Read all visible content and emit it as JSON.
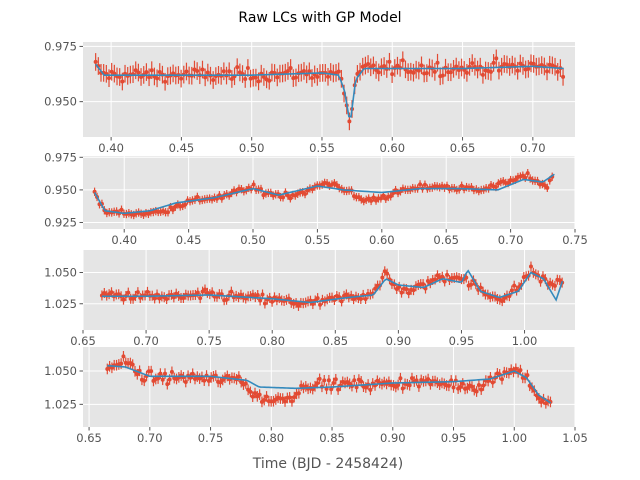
{
  "figure": {
    "title": "Raw LCs with GP Model",
    "xlabel": "Time (BJD - 2458424)",
    "background": "#ffffff",
    "panel_background": "#e5e5e5",
    "grid_color": "#ffffff",
    "data_color": "#e24a33",
    "model_color": "#348abd",
    "tick_text_color": "#555555"
  },
  "chart_data": [
    {
      "type": "line",
      "title": "",
      "xlabel": "",
      "ylabel": "",
      "xlim": [
        0.38,
        0.73
      ],
      "ylim": [
        0.934,
        0.977
      ],
      "xticks": [
        0.4,
        0.45,
        0.5,
        0.55,
        0.6,
        0.65,
        0.7
      ],
      "xtick_labels": [
        "0.40",
        "0.45",
        "0.50",
        "0.55",
        "0.60",
        "0.65",
        "0.70"
      ],
      "yticks": [
        0.95,
        0.975
      ],
      "ytick_labels": [
        "0.950",
        "0.975"
      ],
      "grid": true,
      "series": [
        {
          "kind": "data",
          "noise": 0.0035,
          "errorbar": 0.004,
          "spacing": 0.0019,
          "knots": [
            [
              0.389,
              0.966
            ],
            [
              0.395,
              0.962
            ],
            [
              0.45,
              0.962
            ],
            [
              0.5,
              0.962
            ],
            [
              0.55,
              0.963
            ],
            [
              0.562,
              0.962
            ],
            [
              0.566,
              0.955
            ],
            [
              0.57,
              0.939
            ],
            [
              0.574,
              0.96
            ],
            [
              0.58,
              0.965
            ],
            [
              0.65,
              0.965
            ],
            [
              0.7,
              0.966
            ],
            [
              0.722,
              0.965
            ]
          ]
        },
        {
          "kind": "model",
          "knots": [
            [
              0.389,
              0.967
            ],
            [
              0.395,
              0.962
            ],
            [
              0.45,
              0.962
            ],
            [
              0.5,
              0.962
            ],
            [
              0.55,
              0.963
            ],
            [
              0.562,
              0.962
            ],
            [
              0.566,
              0.955
            ],
            [
              0.57,
              0.94
            ],
            [
              0.574,
              0.96
            ],
            [
              0.58,
              0.965
            ],
            [
              0.65,
              0.965
            ],
            [
              0.7,
              0.966
            ],
            [
              0.722,
              0.965
            ]
          ]
        }
      ]
    },
    {
      "type": "line",
      "title": "",
      "xlabel": "",
      "ylabel": "",
      "xlim": [
        0.368,
        0.75
      ],
      "ylim": [
        0.92,
        0.976
      ],
      "xticks": [
        0.4,
        0.45,
        0.5,
        0.55,
        0.6,
        0.65,
        0.7,
        0.75
      ],
      "xtick_labels": [
        "0.40",
        "0.45",
        "0.50",
        "0.55",
        "0.60",
        "0.65",
        "0.70",
        "0.75"
      ],
      "yticks": [
        0.925,
        0.95,
        0.975
      ],
      "ytick_labels": [
        "0.925",
        "0.950",
        "0.975"
      ],
      "grid": true,
      "series": [
        {
          "kind": "data",
          "noise": 0.0028,
          "errorbar": 0.0032,
          "spacing": 0.0019,
          "knots": [
            [
              0.377,
              0.948
            ],
            [
              0.382,
              0.938
            ],
            [
              0.385,
              0.933
            ],
            [
              0.41,
              0.932
            ],
            [
              0.43,
              0.933
            ],
            [
              0.44,
              0.938
            ],
            [
              0.46,
              0.943
            ],
            [
              0.48,
              0.945
            ],
            [
              0.49,
              0.95
            ],
            [
              0.5,
              0.951
            ],
            [
              0.51,
              0.948
            ],
            [
              0.52,
              0.946
            ],
            [
              0.53,
              0.946
            ],
            [
              0.545,
              0.95
            ],
            [
              0.555,
              0.955
            ],
            [
              0.565,
              0.954
            ],
            [
              0.575,
              0.948
            ],
            [
              0.585,
              0.942
            ],
            [
              0.595,
              0.943
            ],
            [
              0.605,
              0.946
            ],
            [
              0.62,
              0.95
            ],
            [
              0.64,
              0.953
            ],
            [
              0.66,
              0.951
            ],
            [
              0.675,
              0.951
            ],
            [
              0.69,
              0.953
            ],
            [
              0.7,
              0.958
            ],
            [
              0.715,
              0.96
            ],
            [
              0.728,
              0.952
            ],
            [
              0.734,
              0.962
            ]
          ]
        },
        {
          "kind": "model",
          "knots": [
            [
              0.377,
              0.948
            ],
            [
              0.385,
              0.934
            ],
            [
              0.4,
              0.932
            ],
            [
              0.42,
              0.934
            ],
            [
              0.44,
              0.94
            ],
            [
              0.47,
              0.944
            ],
            [
              0.5,
              0.951
            ],
            [
              0.52,
              0.946
            ],
            [
              0.55,
              0.953
            ],
            [
              0.57,
              0.95
            ],
            [
              0.6,
              0.948
            ],
            [
              0.63,
              0.951
            ],
            [
              0.66,
              0.951
            ],
            [
              0.69,
              0.95
            ],
            [
              0.71,
              0.958
            ],
            [
              0.725,
              0.956
            ],
            [
              0.734,
              0.962
            ]
          ]
        }
      ]
    },
    {
      "type": "line",
      "title": "",
      "xlabel": "",
      "ylabel": "",
      "xlim": [
        0.65,
        1.04
      ],
      "ylim": [
        1.004,
        1.068
      ],
      "xticks": [
        0.65,
        0.7,
        0.75,
        0.8,
        0.85,
        0.9,
        0.95,
        1.0
      ],
      "xtick_labels": [
        "0.65",
        "0.70",
        "0.75",
        "0.80",
        "0.85",
        "0.90",
        "0.95",
        "1.00"
      ],
      "yticks": [
        1.025,
        1.05
      ],
      "ytick_labels": [
        "1.025",
        "1.050"
      ],
      "grid": true,
      "series": [
        {
          "kind": "data",
          "noise": 0.0045,
          "errorbar": 0.004,
          "spacing": 0.0019,
          "knots": [
            [
              0.665,
              1.032
            ],
            [
              0.7,
              1.031
            ],
            [
              0.72,
              1.03
            ],
            [
              0.75,
              1.032
            ],
            [
              0.78,
              1.03
            ],
            [
              0.8,
              1.028
            ],
            [
              0.83,
              1.025
            ],
            [
              0.86,
              1.03
            ],
            [
              0.875,
              1.032
            ],
            [
              0.885,
              1.04
            ],
            [
              0.89,
              1.05
            ],
            [
              0.895,
              1.04
            ],
            [
              0.91,
              1.035
            ],
            [
              0.93,
              1.045
            ],
            [
              0.945,
              1.048
            ],
            [
              0.96,
              1.04
            ],
            [
              0.97,
              1.032
            ],
            [
              0.985,
              1.03
            ],
            [
              0.995,
              1.038
            ],
            [
              1.005,
              1.052
            ],
            [
              1.02,
              1.04
            ],
            [
              1.025,
              1.042
            ],
            [
              1.03,
              1.043
            ]
          ]
        },
        {
          "kind": "model",
          "knots": [
            [
              0.665,
              1.031
            ],
            [
              0.7,
              1.031
            ],
            [
              0.75,
              1.032
            ],
            [
              0.8,
              1.029
            ],
            [
              0.83,
              1.026
            ],
            [
              0.86,
              1.03
            ],
            [
              0.88,
              1.032
            ],
            [
              0.89,
              1.045
            ],
            [
              0.9,
              1.04
            ],
            [
              0.92,
              1.038
            ],
            [
              0.935,
              1.045
            ],
            [
              0.95,
              1.042
            ],
            [
              0.955,
              1.052
            ],
            [
              0.965,
              1.035
            ],
            [
              0.98,
              1.03
            ],
            [
              0.995,
              1.035
            ],
            [
              1.005,
              1.05
            ],
            [
              1.015,
              1.045
            ],
            [
              1.025,
              1.028
            ],
            [
              1.03,
              1.043
            ]
          ]
        }
      ]
    },
    {
      "type": "line",
      "title": "",
      "xlabel": "Time (BJD - 2458424)",
      "ylabel": "",
      "xlim": [
        0.645,
        1.05
      ],
      "ylim": [
        1.008,
        1.068
      ],
      "xticks": [
        0.65,
        0.7,
        0.75,
        0.8,
        0.85,
        0.9,
        0.95,
        1.0,
        1.05
      ],
      "xtick_labels": [
        "0.65",
        "0.70",
        "0.75",
        "0.80",
        "0.85",
        "0.90",
        "0.95",
        "1.00",
        "1.05"
      ],
      "yticks": [
        1.025,
        1.05
      ],
      "ytick_labels": [
        "1.025",
        "1.050"
      ],
      "grid": true,
      "series": [
        {
          "kind": "data",
          "noise": 0.0045,
          "errorbar": 0.004,
          "spacing": 0.0019,
          "knots": [
            [
              0.665,
              1.052
            ],
            [
              0.68,
              1.058
            ],
            [
              0.69,
              1.048
            ],
            [
              0.7,
              1.045
            ],
            [
              0.72,
              1.045
            ],
            [
              0.74,
              1.045
            ],
            [
              0.76,
              1.043
            ],
            [
              0.775,
              1.045
            ],
            [
              0.785,
              1.032
            ],
            [
              0.8,
              1.028
            ],
            [
              0.815,
              1.03
            ],
            [
              0.83,
              1.04
            ],
            [
              0.86,
              1.04
            ],
            [
              0.89,
              1.04
            ],
            [
              0.92,
              1.042
            ],
            [
              0.95,
              1.04
            ],
            [
              0.97,
              1.038
            ],
            [
              0.99,
              1.048
            ],
            [
              1.0,
              1.052
            ],
            [
              1.01,
              1.045
            ],
            [
              1.02,
              1.03
            ],
            [
              1.03,
              1.025
            ]
          ]
        },
        {
          "kind": "model",
          "knots": [
            [
              0.665,
              1.054
            ],
            [
              0.68,
              1.053
            ],
            [
              0.7,
              1.046
            ],
            [
              0.75,
              1.046
            ],
            [
              0.78,
              1.043
            ],
            [
              0.79,
              1.038
            ],
            [
              0.82,
              1.037
            ],
            [
              0.85,
              1.038
            ],
            [
              0.9,
              1.041
            ],
            [
              0.95,
              1.042
            ],
            [
              0.98,
              1.044
            ],
            [
              1.0,
              1.05
            ],
            [
              1.01,
              1.045
            ],
            [
              1.02,
              1.032
            ],
            [
              1.03,
              1.026
            ]
          ]
        }
      ]
    }
  ]
}
